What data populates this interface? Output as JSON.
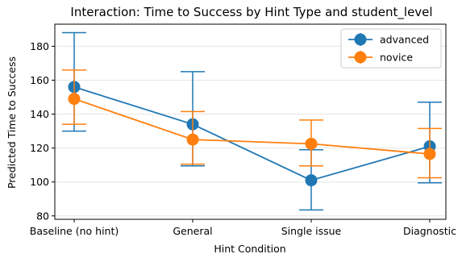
{
  "chart_data": {
    "type": "line",
    "title": "Interaction: Time to Success by Hint Type and student_level",
    "xlabel": "Hint Condition",
    "ylabel": "Predicted Time to Success",
    "categories": [
      "Baseline (no hint)",
      "General",
      "Single issue",
      "Diagnostic"
    ],
    "ylim": [
      78,
      193
    ],
    "yticks": [
      80,
      100,
      120,
      140,
      160,
      180
    ],
    "grid": "horizontal",
    "legend_position": "top-right",
    "series": [
      {
        "name": "advanced",
        "color": "#1f77b4",
        "values": [
          156,
          134,
          101,
          121
        ],
        "err_low": [
          130,
          109.5,
          83.5,
          99.5
        ],
        "err_high": [
          188,
          165,
          119,
          147
        ]
      },
      {
        "name": "novice",
        "color": "#ff7f0e",
        "values": [
          149,
          125,
          122.5,
          116.5
        ],
        "err_low": [
          134,
          110.5,
          109.5,
          102.5
        ],
        "err_high": [
          166,
          141.5,
          136.5,
          131.5
        ]
      }
    ]
  }
}
